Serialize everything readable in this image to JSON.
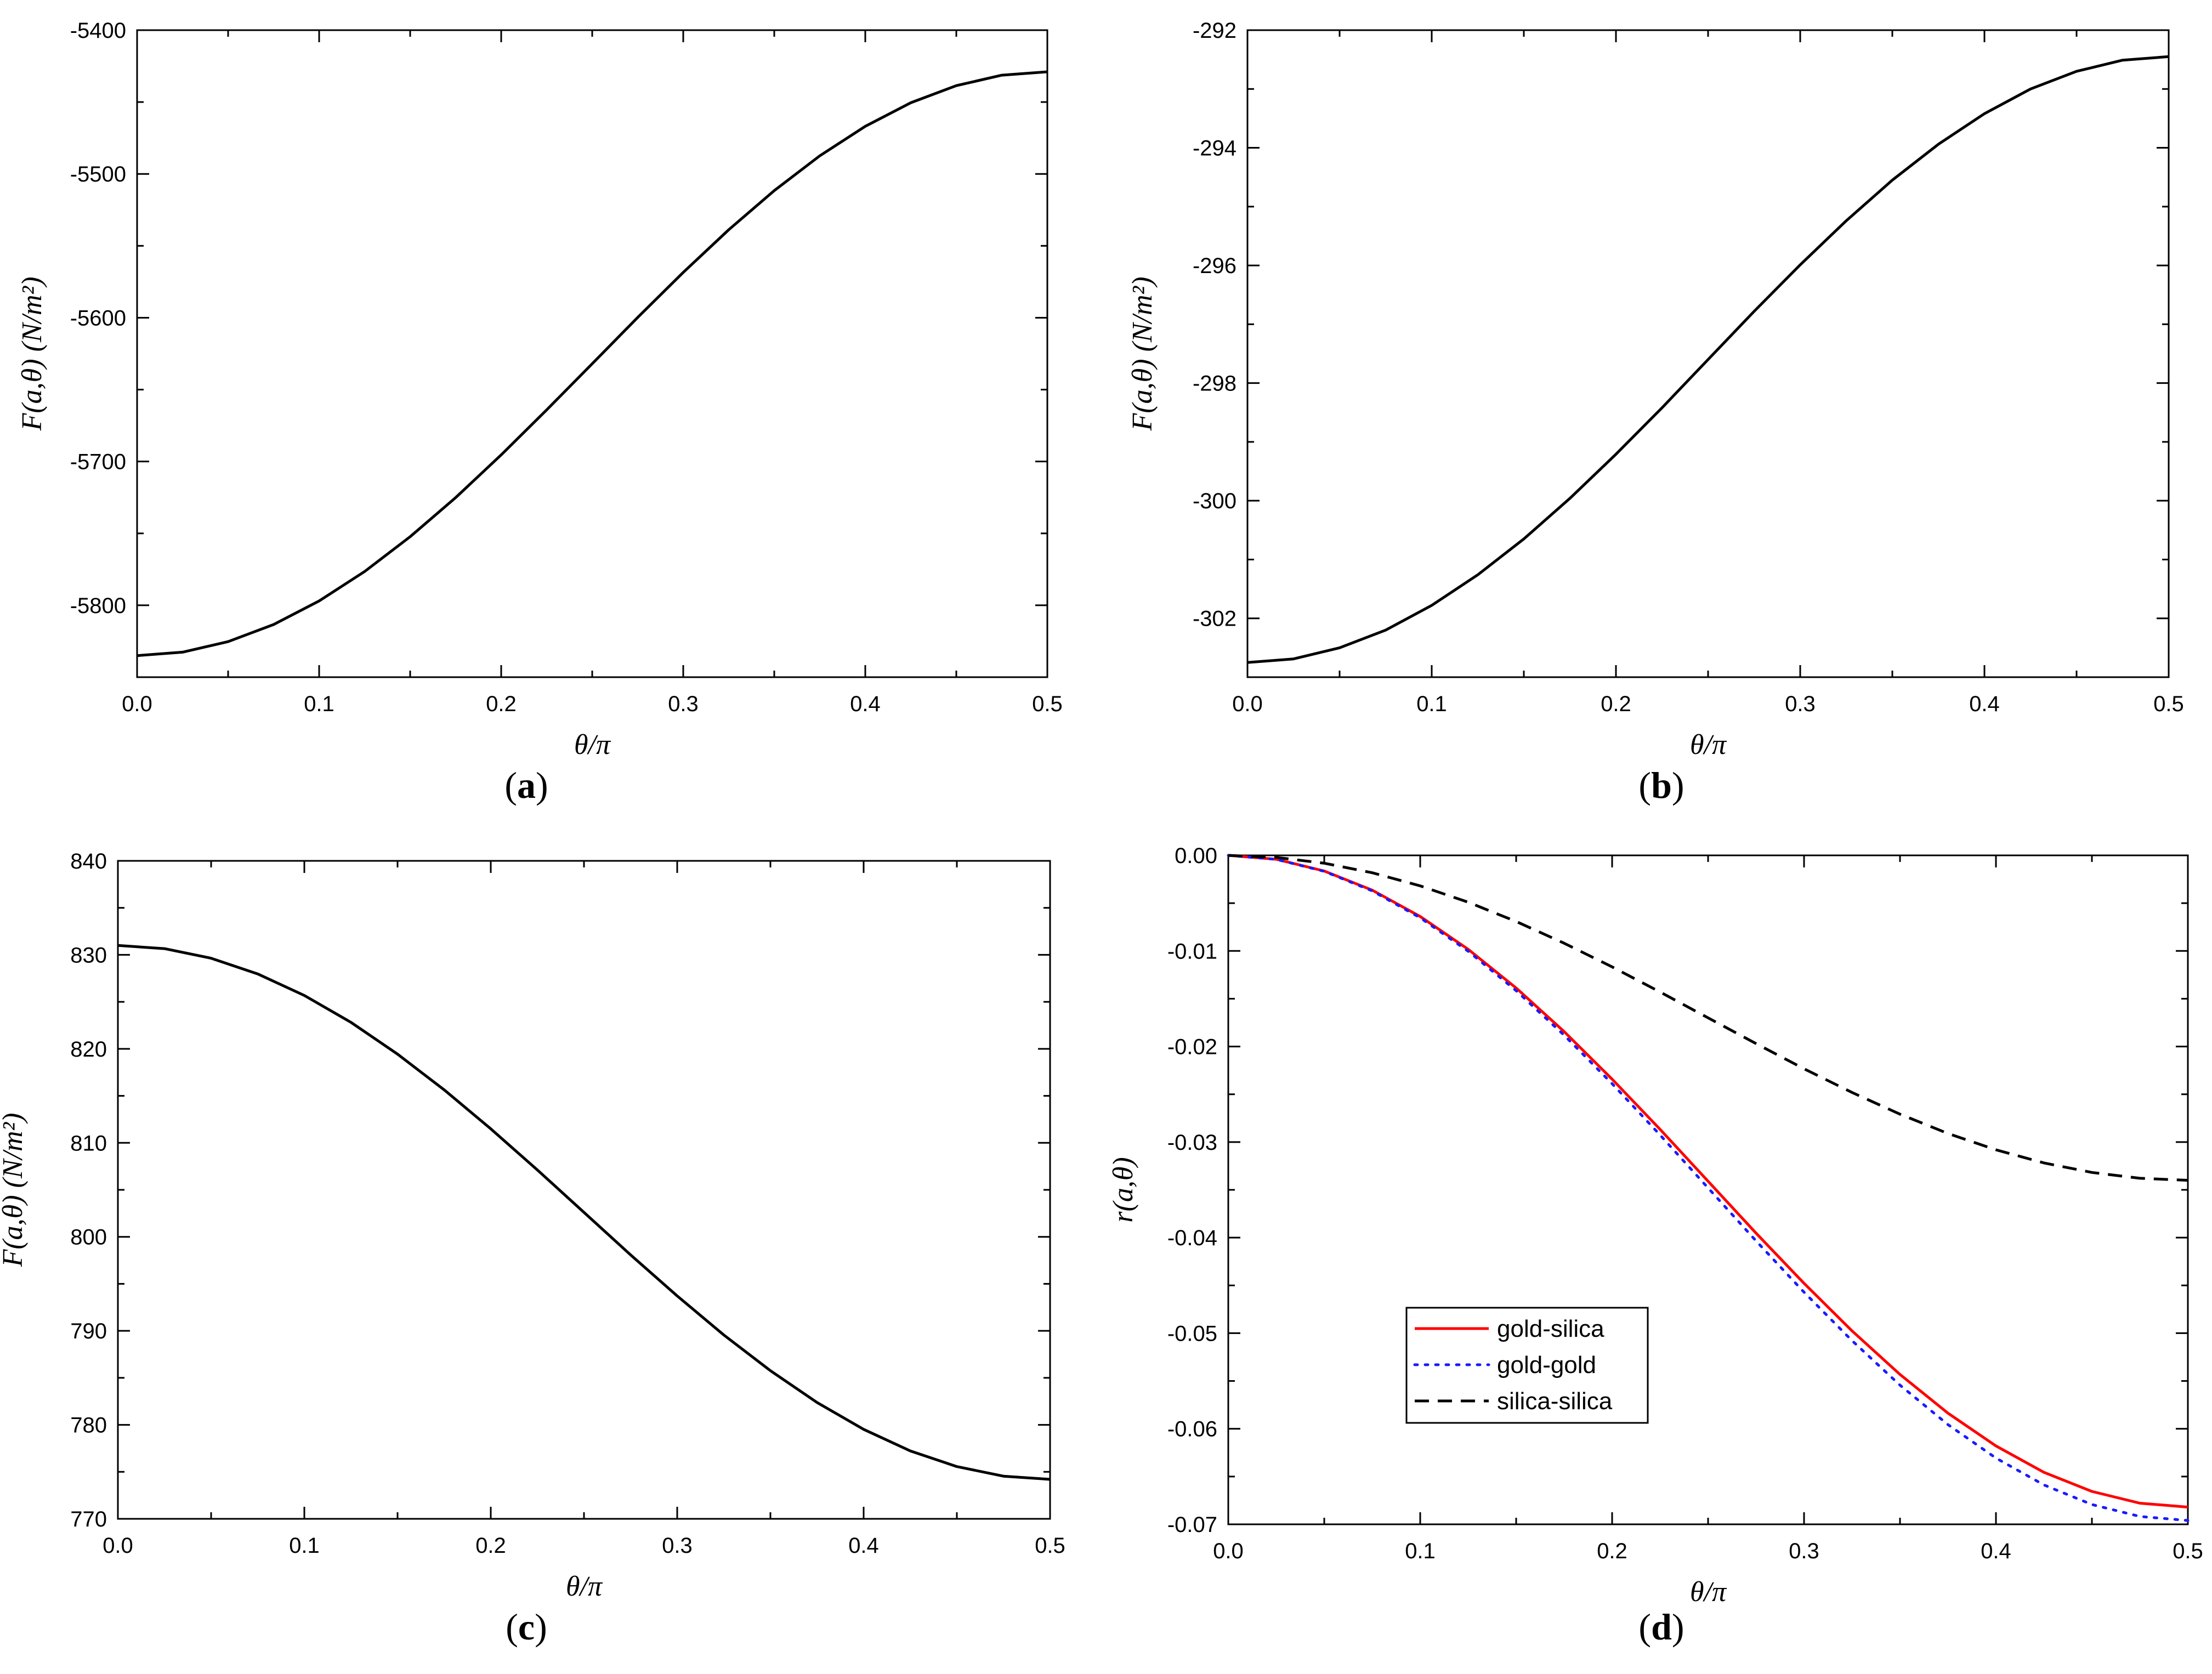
{
  "chart_data": [
    {
      "panel": "a",
      "type": "line",
      "panel_label": "a",
      "xlabel": "θ/π",
      "ylabel": "F(a,θ)  (N/m²)",
      "xlim": [
        0,
        0.5
      ],
      "ylim": [
        -5850,
        -5400
      ],
      "x_ticks": [
        "0.0",
        "0.1",
        "0.2",
        "0.3",
        "0.4",
        "0.5"
      ],
      "y_ticks": [
        "-5400",
        "-5500",
        "-5600",
        "-5700",
        "-5800"
      ],
      "series": [
        {
          "name": "F",
          "color": "#000000",
          "dash": "solid",
          "x": [
            0.0,
            0.025,
            0.05,
            0.075,
            0.1,
            0.125,
            0.15,
            0.175,
            0.2,
            0.225,
            0.25,
            0.275,
            0.3,
            0.325,
            0.35,
            0.375,
            0.4,
            0.425,
            0.45,
            0.475,
            0.5
          ],
          "y": [
            -5835,
            -5832.6,
            -5825.3,
            -5813.4,
            -5797,
            -5776.5,
            -5752.3,
            -5725.1,
            -5695.4,
            -5664.1,
            -5632,
            -5599.8,
            -5568.5,
            -5538.8,
            -5511.6,
            -5487.4,
            -5466.9,
            -5450.5,
            -5438.6,
            -5431.3,
            -5429
          ]
        }
      ]
    },
    {
      "panel": "b",
      "type": "line",
      "panel_label": "b",
      "xlabel": "θ/π",
      "ylabel": "F(a,θ)  (N/m²)",
      "xlim": [
        0,
        0.5
      ],
      "ylim": [
        -303,
        -292
      ],
      "x_ticks": [
        "0.0",
        "0.1",
        "0.2",
        "0.3",
        "0.4",
        "0.5"
      ],
      "y_ticks": [
        "-292",
        "-294",
        "-296",
        "-298",
        "-300",
        "-302"
      ],
      "series": [
        {
          "name": "F",
          "color": "#000000",
          "dash": "solid",
          "x": [
            0.0,
            0.025,
            0.05,
            0.075,
            0.1,
            0.125,
            0.15,
            0.175,
            0.2,
            0.225,
            0.25,
            0.275,
            0.3,
            0.325,
            0.35,
            0.375,
            0.4,
            0.425,
            0.45,
            0.475,
            0.5
          ],
          "y": [
            -302.75,
            -302.69,
            -302.5,
            -302.2,
            -301.78,
            -301.26,
            -300.65,
            -299.96,
            -299.21,
            -298.42,
            -297.6,
            -296.78,
            -295.99,
            -295.24,
            -294.55,
            -293.94,
            -293.42,
            -293.0,
            -292.7,
            -292.51,
            -292.45
          ]
        }
      ]
    },
    {
      "panel": "c",
      "type": "line",
      "panel_label": "c",
      "xlabel": "θ/π",
      "ylabel": "F(a,θ)  (N/m²)",
      "xlim": [
        0,
        0.5
      ],
      "ylim": [
        770,
        840
      ],
      "x_ticks": [
        "0.0",
        "0.1",
        "0.2",
        "0.3",
        "0.4",
        "0.5"
      ],
      "y_ticks": [
        "840",
        "830",
        "820",
        "810",
        "800",
        "790",
        "780",
        "770"
      ],
      "series": [
        {
          "name": "F",
          "color": "#000000",
          "dash": "solid",
          "x": [
            0.0,
            0.025,
            0.05,
            0.075,
            0.1,
            0.125,
            0.15,
            0.175,
            0.2,
            0.225,
            0.25,
            0.275,
            0.3,
            0.325,
            0.35,
            0.375,
            0.4,
            0.425,
            0.45,
            0.475,
            0.5
          ],
          "y": [
            831,
            830.66,
            829.64,
            827.97,
            825.68,
            822.82,
            819.44,
            815.64,
            811.49,
            807.12,
            802.6,
            798.08,
            793.71,
            789.56,
            785.76,
            782.38,
            779.52,
            777.23,
            775.56,
            774.54,
            774.2
          ]
        }
      ]
    },
    {
      "panel": "d",
      "type": "line",
      "panel_label": "d",
      "xlabel": "θ/π",
      "ylabel": "r(a,θ)",
      "xlim": [
        0,
        0.5
      ],
      "ylim": [
        -0.07,
        0.0
      ],
      "x_ticks": [
        "0.0",
        "0.1",
        "0.2",
        "0.3",
        "0.4",
        "0.5"
      ],
      "y_ticks": [
        "0.00",
        "-0.01",
        "-0.02",
        "-0.03",
        "-0.04",
        "-0.05",
        "-0.06",
        "-0.07"
      ],
      "legend": {
        "position": "lower-left-center",
        "entries": [
          "gold-silica",
          "gold-gold",
          "silica-silica"
        ]
      },
      "series": [
        {
          "name": "gold-silica",
          "color": "#ff0000",
          "dash": "solid",
          "x": [
            0.0,
            0.025,
            0.05,
            0.075,
            0.1,
            0.125,
            0.15,
            0.175,
            0.2,
            0.225,
            0.25,
            0.275,
            0.3,
            0.325,
            0.35,
            0.375,
            0.4,
            0.425,
            0.45,
            0.475,
            0.5
          ],
          "y": [
            0.0,
            -0.00041,
            -0.00164,
            -0.00364,
            -0.0064,
            -0.00983,
            -0.01388,
            -0.01844,
            -0.02342,
            -0.02867,
            -0.0341,
            -0.03953,
            -0.04478,
            -0.04976,
            -0.05432,
            -0.05837,
            -0.0618,
            -0.06456,
            -0.06656,
            -0.06779,
            -0.0682
          ]
        },
        {
          "name": "gold-gold",
          "color": "#1a1aff",
          "dash": "dotted",
          "x": [
            0.0,
            0.025,
            0.05,
            0.075,
            0.1,
            0.125,
            0.15,
            0.175,
            0.2,
            0.225,
            0.25,
            0.275,
            0.3,
            0.325,
            0.35,
            0.375,
            0.4,
            0.425,
            0.45,
            0.475,
            0.5
          ],
          "y": [
            0.0,
            -0.00042,
            -0.00167,
            -0.00372,
            -0.00653,
            -0.01003,
            -0.01416,
            -0.01882,
            -0.02389,
            -0.02926,
            -0.0348,
            -0.04034,
            -0.04571,
            -0.05078,
            -0.05544,
            -0.05957,
            -0.06307,
            -0.06588,
            -0.06793,
            -0.06918,
            -0.0696
          ]
        },
        {
          "name": "silica-silica",
          "color": "#000000",
          "dash": "dashed",
          "x": [
            0.0,
            0.025,
            0.05,
            0.075,
            0.1,
            0.125,
            0.15,
            0.175,
            0.2,
            0.225,
            0.25,
            0.275,
            0.3,
            0.325,
            0.35,
            0.375,
            0.4,
            0.425,
            0.45,
            0.475,
            0.5
          ],
          "y": [
            0.0,
            -0.00021,
            -0.00082,
            -0.00182,
            -0.00319,
            -0.0049,
            -0.00692,
            -0.00919,
            -0.01167,
            -0.0143,
            -0.017,
            -0.0197,
            -0.02233,
            -0.02481,
            -0.02708,
            -0.0291,
            -0.03081,
            -0.03218,
            -0.03318,
            -0.03379,
            -0.034
          ]
        }
      ]
    }
  ]
}
